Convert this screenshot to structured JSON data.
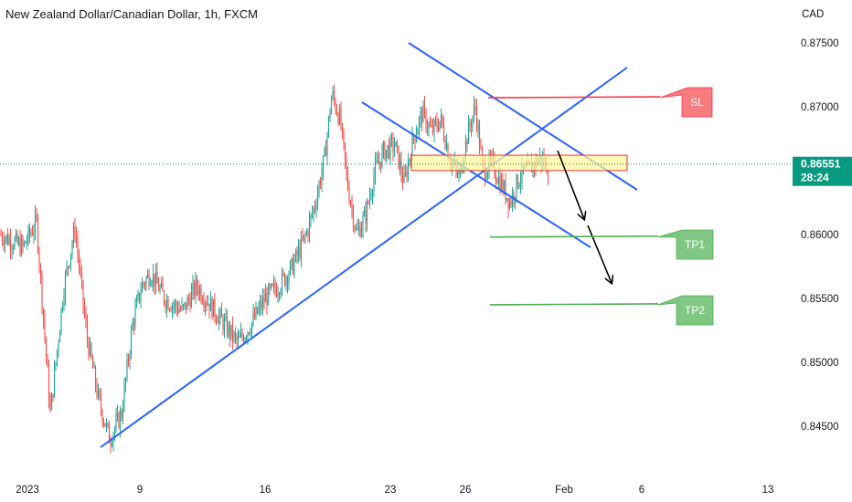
{
  "header": {
    "title": "New Zealand Dollar/Canadian Dollar, 1h, FXCM"
  },
  "chart_data": {
    "type": "candlestick",
    "title": "New Zealand Dollar/Canadian Dollar, 1h, FXCM",
    "currency_label": "CAD",
    "y_ticks": [
      "0.87500",
      "0.87000",
      "0.86500",
      "0.86000",
      "0.85500",
      "0.85000",
      "0.84500"
    ],
    "y_tick_values": [
      0.875,
      0.87,
      0.865,
      0.86,
      0.855,
      0.85,
      0.845
    ],
    "ylim": [
      0.8405,
      0.8762
    ],
    "x_ticks": [
      "2023",
      "9",
      "16",
      "23",
      "26",
      "Feb",
      "6",
      "13"
    ],
    "current_price": {
      "value": "0.86551",
      "countdown": "28:24",
      "price": 0.86551
    },
    "annotations": [
      {
        "label": "SL",
        "level": 0.8707,
        "color": "#f77c80"
      },
      {
        "label": "TP1",
        "level": 0.8598,
        "color": "#81c784"
      },
      {
        "label": "TP2",
        "level": 0.8545,
        "color": "#81c784"
      }
    ],
    "zone": {
      "low": 0.865,
      "high": 0.8662,
      "color": "#fff59d"
    },
    "colors": {
      "up": "#26a69a",
      "down": "#ef5350",
      "trendline": "#2962ff",
      "sl": "#f23645",
      "tp": "#4caf50"
    },
    "price_path": [
      [
        0,
        0.86
      ],
      [
        25,
        0.859
      ],
      [
        40,
        0.861
      ],
      [
        55,
        0.846
      ],
      [
        70,
        0.856
      ],
      [
        82,
        0.8605
      ],
      [
        95,
        0.852
      ],
      [
        108,
        0.847
      ],
      [
        120,
        0.844
      ],
      [
        133,
        0.846
      ],
      [
        145,
        0.853
      ],
      [
        155,
        0.856
      ],
      [
        165,
        0.857
      ],
      [
        180,
        0.855
      ],
      [
        200,
        0.854
      ],
      [
        215,
        0.856
      ],
      [
        230,
        0.8545
      ],
      [
        245,
        0.853
      ],
      [
        260,
        0.8515
      ],
      [
        275,
        0.853
      ],
      [
        290,
        0.855
      ],
      [
        305,
        0.856
      ],
      [
        320,
        0.8575
      ],
      [
        335,
        0.86
      ],
      [
        345,
        0.8625
      ],
      [
        355,
        0.866
      ],
      [
        363,
        0.871
      ],
      [
        372,
        0.869
      ],
      [
        380,
        0.864
      ],
      [
        390,
        0.86
      ],
      [
        400,
        0.8615
      ],
      [
        410,
        0.865
      ],
      [
        420,
        0.8665
      ],
      [
        432,
        0.867
      ],
      [
        442,
        0.864
      ],
      [
        452,
        0.8675
      ],
      [
        462,
        0.8695
      ],
      [
        472,
        0.868
      ],
      [
        482,
        0.869
      ],
      [
        492,
        0.866
      ],
      [
        502,
        0.8645
      ],
      [
        512,
        0.868
      ],
      [
        520,
        0.87
      ],
      [
        528,
        0.865
      ],
      [
        538,
        0.8655
      ],
      [
        548,
        0.864
      ],
      [
        558,
        0.8625
      ],
      [
        568,
        0.8645
      ],
      [
        578,
        0.865
      ],
      [
        590,
        0.866
      ],
      [
        600,
        0.8652
      ]
    ]
  }
}
